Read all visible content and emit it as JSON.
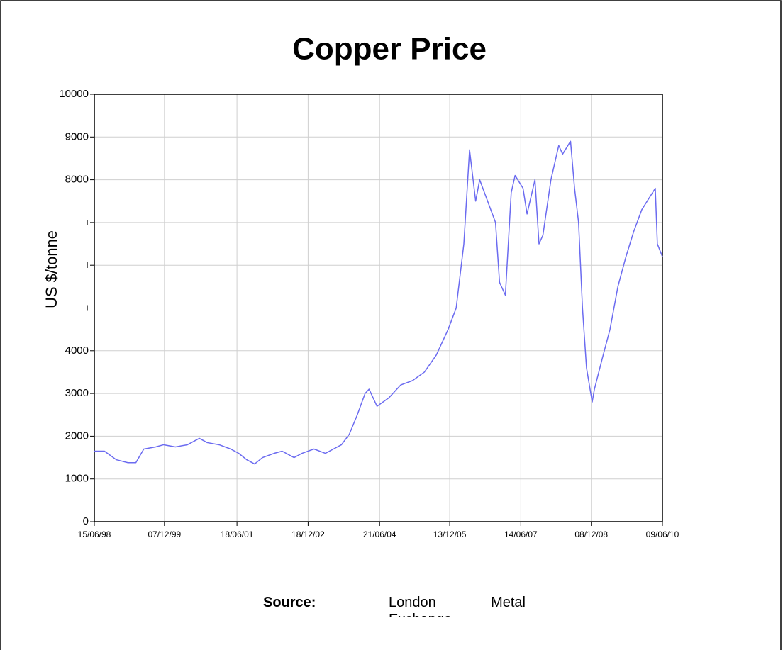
{
  "chart_data": {
    "type": "line",
    "title": "Copper Price",
    "y_label": "US $/tonne",
    "source_label": "Source:",
    "source": "London Metal Exchange",
    "date_format": "dd/mm/yy",
    "xlim": [
      "15/06/98",
      "09/06/10"
    ],
    "xticks": [
      "15/06/98",
      "07/12/99",
      "18/06/01",
      "18/12/02",
      "21/06/04",
      "13/12/05",
      "14/06/07",
      "08/12/08",
      "09/06/10"
    ],
    "ylim": [
      0,
      10000
    ],
    "yticks": [
      0,
      1000,
      2000,
      3000,
      4000,
      {
        "value": 5000,
        "label": "ı"
      },
      {
        "value": 6000,
        "label": "ı"
      },
      {
        "value": 7000,
        "label": "ı"
      },
      8000,
      9000,
      10000
    ],
    "grid": true,
    "x": [
      "15/06/98",
      "01/09/98",
      "01/12/98",
      "01/03/99",
      "01/05/99",
      "01/07/99",
      "01/10/99",
      "01/12/99",
      "01/03/00",
      "01/06/00",
      "01/09/00",
      "01/11/00",
      "01/02/01",
      "01/05/01",
      "01/07/01",
      "01/09/01",
      "01/11/01",
      "01/01/02",
      "01/04/02",
      "01/06/02",
      "01/09/02",
      "01/11/02",
      "01/02/03",
      "01/05/03",
      "01/07/03",
      "01/09/03",
      "01/11/03",
      "01/01/04",
      "01/03/04",
      "01/04/04",
      "01/06/04",
      "01/09/04",
      "01/12/04",
      "01/03/05",
      "01/06/05",
      "01/09/05",
      "01/12/05",
      "01/02/06",
      "01/04/06",
      "15/05/06",
      "01/07/06",
      "01/08/06",
      "01/10/06",
      "01/12/06",
      "01/01/07",
      "15/02/07",
      "01/04/07",
      "01/05/07",
      "01/07/07",
      "01/08/07",
      "01/10/07",
      "01/11/07",
      "01/12/07",
      "01/02/08",
      "01/04/08",
      "01/05/08",
      "01/07/08",
      "01/08/08",
      "01/09/08",
      "01/10/08",
      "01/11/08",
      "15/12/08",
      "01/01/09",
      "01/03/09",
      "01/05/09",
      "01/07/09",
      "01/09/09",
      "01/11/09",
      "01/01/10",
      "15/04/10",
      "01/05/10",
      "09/06/10"
    ],
    "series": [
      {
        "name": "Copper",
        "color": "#6b6bf0",
        "values": [
          1650,
          1650,
          1450,
          1380,
          1380,
          1700,
          1750,
          1800,
          1750,
          1800,
          1950,
          1850,
          1800,
          1700,
          1600,
          1450,
          1350,
          1500,
          1600,
          1650,
          1500,
          1600,
          1700,
          1600,
          1700,
          1800,
          2050,
          2500,
          3000,
          3100,
          2700,
          2900,
          3200,
          3300,
          3500,
          3900,
          4500,
          5000,
          6500,
          8700,
          7500,
          8000,
          7500,
          7000,
          5600,
          5300,
          7700,
          8100,
          7800,
          7200,
          8000,
          6500,
          6700,
          8000,
          8800,
          8600,
          8900,
          7800,
          7000,
          5000,
          3600,
          2800,
          3100,
          3800,
          4500,
          5500,
          6200,
          6800,
          7300,
          7800,
          6500,
          6200
        ]
      }
    ]
  }
}
